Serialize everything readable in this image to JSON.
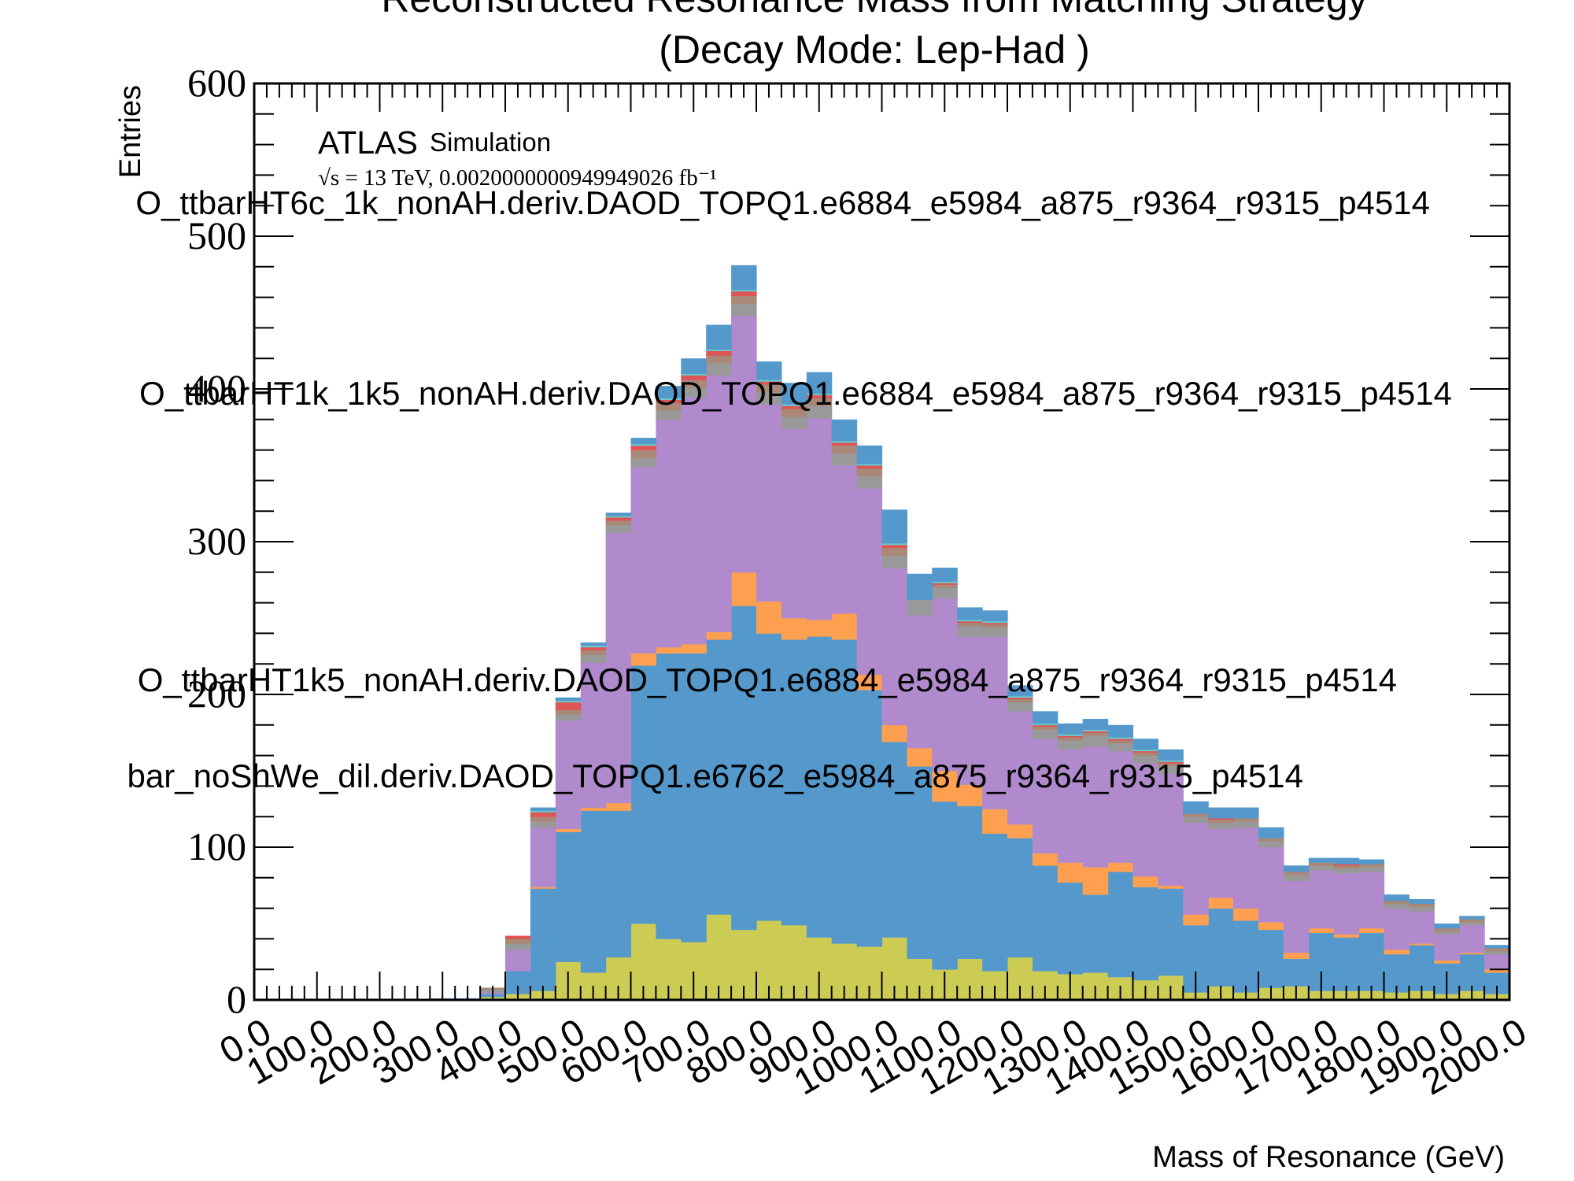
{
  "chart_data": {
    "type": "bar",
    "stacked": true,
    "title": "Reconstructed Resonance Mass from Matching Strategy",
    "subtitle": "(Decay Mode: Lep-Had )",
    "xlabel": "Mass of Resonance (GeV)",
    "ylabel": "Entries",
    "xlim": [
      0,
      2000
    ],
    "ylim": [
      0,
      600
    ],
    "bin_width": 40,
    "x_tick_labels": [
      "0.0",
      "100.0",
      "200.0",
      "300.0",
      "400.0",
      "500.0",
      "600.0",
      "700.0",
      "800.0",
      "900.0",
      "1000.0",
      "1100.0",
      "1200.0",
      "1300.0",
      "1400.0",
      "1500.0",
      "1600.0",
      "1700.0",
      "1800.0",
      "1900.0",
      "2000.0"
    ],
    "y_tick_labels": [
      "0",
      "100",
      "200",
      "300",
      "400",
      "500",
      "600"
    ],
    "atlas_label": "ATLAS",
    "simulation_label": "Simulation",
    "energy_label": "√s = 13 TeV, 0.0020000000949949026 fb⁻¹",
    "legend_labels": [
      "O_ttbarHT6c_1k_nonAH.deriv.DAOD_TOPQ1.e6884_e5984_a875_r9364_r9315_p4514",
      "O_ttbarHT1k_1k5_nonAH.deriv.DAOD_TOPQ1.e6884_e5984_a875_r9364_r9315_p4514",
      "O_ttbarHT1k5_nonAH.deriv.DAOD_TOPQ1.e6884_e5984_a875_r9364_r9315_p4514",
      "bar_noShWe_dil.deriv.DAOD_TOPQ1.e6762_e5984_a875_r9364_r9315_p4514"
    ],
    "bins_lo": [
      0,
      40,
      80,
      120,
      160,
      200,
      240,
      280,
      320,
      360,
      400,
      440,
      480,
      520,
      560,
      600,
      640,
      680,
      720,
      760,
      800,
      840,
      880,
      920,
      960,
      1000,
      1040,
      1080,
      1120,
      1160,
      1200,
      1240,
      1280,
      1320,
      1360,
      1400,
      1440,
      1480,
      1520,
      1560,
      1600,
      1640,
      1680,
      1720,
      1760,
      1800,
      1840,
      1880,
      1920,
      1960
    ],
    "series": [
      {
        "color": "#cccc55",
        "values": [
          0,
          0,
          0,
          0,
          0,
          0,
          0,
          0,
          0,
          2,
          4,
          6,
          25,
          18,
          28,
          50,
          40,
          38,
          56,
          46,
          52,
          49,
          41,
          37,
          35,
          41,
          27,
          20,
          27,
          19,
          28,
          19,
          17,
          18,
          15,
          13,
          16,
          5,
          9,
          5,
          8,
          9,
          6,
          6,
          6,
          5,
          6,
          4,
          6,
          4
        ]
      },
      {
        "color": "#5599cc",
        "values": [
          0,
          0,
          0,
          0,
          0,
          0,
          0,
          1,
          1,
          2,
          15,
          67,
          85,
          106,
          96,
          169,
          187,
          189,
          180,
          212,
          188,
          187,
          197,
          199,
          168,
          128,
          126,
          110,
          100,
          90,
          78,
          69,
          60,
          51,
          69,
          61,
          57,
          44,
          51,
          47,
          38,
          18,
          38,
          35,
          38,
          25,
          30,
          20,
          24,
          14
        ]
      },
      {
        "color": "#ffa050",
        "values": [
          0,
          0,
          0,
          0,
          0,
          0,
          0,
          0,
          0,
          0,
          0,
          1,
          2,
          2,
          5,
          8,
          4,
          6,
          5,
          22,
          21,
          14,
          11,
          17,
          10,
          11,
          12,
          20,
          14,
          16,
          9,
          8,
          13,
          18,
          6,
          7,
          2,
          7,
          7,
          8,
          5,
          4,
          3,
          2,
          3,
          3,
          1,
          2,
          1,
          2
        ]
      },
      {
        "color": "#b08acc",
        "values": [
          0,
          0,
          0,
          0,
          0,
          0,
          0,
          0,
          0,
          1,
          14,
          39,
          71,
          95,
          177,
          122,
          149,
          162,
          168,
          168,
          129,
          124,
          132,
          97,
          122,
          103,
          87,
          113,
          97,
          113,
          74,
          75,
          74,
          79,
          73,
          74,
          73,
          60,
          45,
          53,
          49,
          47,
          38,
          40,
          37,
          27,
          21,
          17,
          18,
          10
        ]
      },
      {
        "color": "#999999",
        "values": [
          0,
          0,
          0,
          0,
          0,
          0,
          0,
          0,
          0,
          2,
          4,
          4,
          4,
          5,
          5,
          6,
          6,
          6,
          8,
          8,
          8,
          8,
          8,
          8,
          8,
          8,
          10,
          7,
          7,
          6,
          6,
          6,
          6,
          7,
          5,
          5,
          5,
          4,
          4,
          4,
          4,
          4,
          3,
          3,
          3,
          3,
          3,
          2,
          2,
          2
        ]
      },
      {
        "color": "#aa8877",
        "values": [
          0,
          0,
          0,
          0,
          0,
          0,
          0,
          0,
          0,
          1,
          3,
          3,
          3,
          3,
          3,
          5,
          5,
          5,
          5,
          5,
          5,
          5,
          5,
          5,
          5,
          5,
          0,
          2,
          2,
          2,
          2,
          2,
          2,
          2,
          2,
          2,
          2,
          2,
          2,
          2,
          2,
          2,
          2,
          2,
          2,
          2,
          2,
          2,
          2,
          2
        ]
      },
      {
        "color": "#dd5555",
        "values": [
          0,
          0,
          0,
          0,
          0,
          0,
          0,
          0,
          0,
          0,
          2,
          3,
          5,
          2,
          2,
          3,
          2,
          3,
          3,
          3,
          2,
          2,
          2,
          2,
          2,
          2,
          0,
          1,
          1,
          1,
          1,
          1,
          1,
          1,
          1,
          1,
          1,
          0,
          1,
          0,
          0,
          0,
          0,
          1,
          0,
          0,
          0,
          0,
          0,
          0
        ]
      },
      {
        "color": "#66cccc",
        "values": [
          0,
          0,
          0,
          0,
          0,
          0,
          0,
          0,
          0,
          0,
          0,
          1,
          1,
          1,
          1,
          1,
          1,
          1,
          1,
          1,
          1,
          1,
          1,
          1,
          1,
          1,
          0,
          1,
          1,
          1,
          1,
          1,
          1,
          1,
          1,
          1,
          1,
          0,
          0,
          0,
          0,
          0,
          0,
          0,
          0,
          0,
          0,
          0,
          0,
          0
        ]
      },
      {
        "color": "#5599cc",
        "values": [
          0,
          0,
          0,
          0,
          0,
          0,
          0,
          0,
          0,
          0,
          0,
          2,
          2,
          2,
          2,
          4,
          8,
          10,
          16,
          16,
          12,
          14,
          14,
          14,
          12,
          22,
          17,
          9,
          8,
          7,
          7,
          8,
          7,
          7,
          8,
          7,
          7,
          8,
          7,
          7,
          7,
          4,
          3,
          4,
          3,
          4,
          3,
          3,
          2,
          2
        ]
      }
    ]
  }
}
